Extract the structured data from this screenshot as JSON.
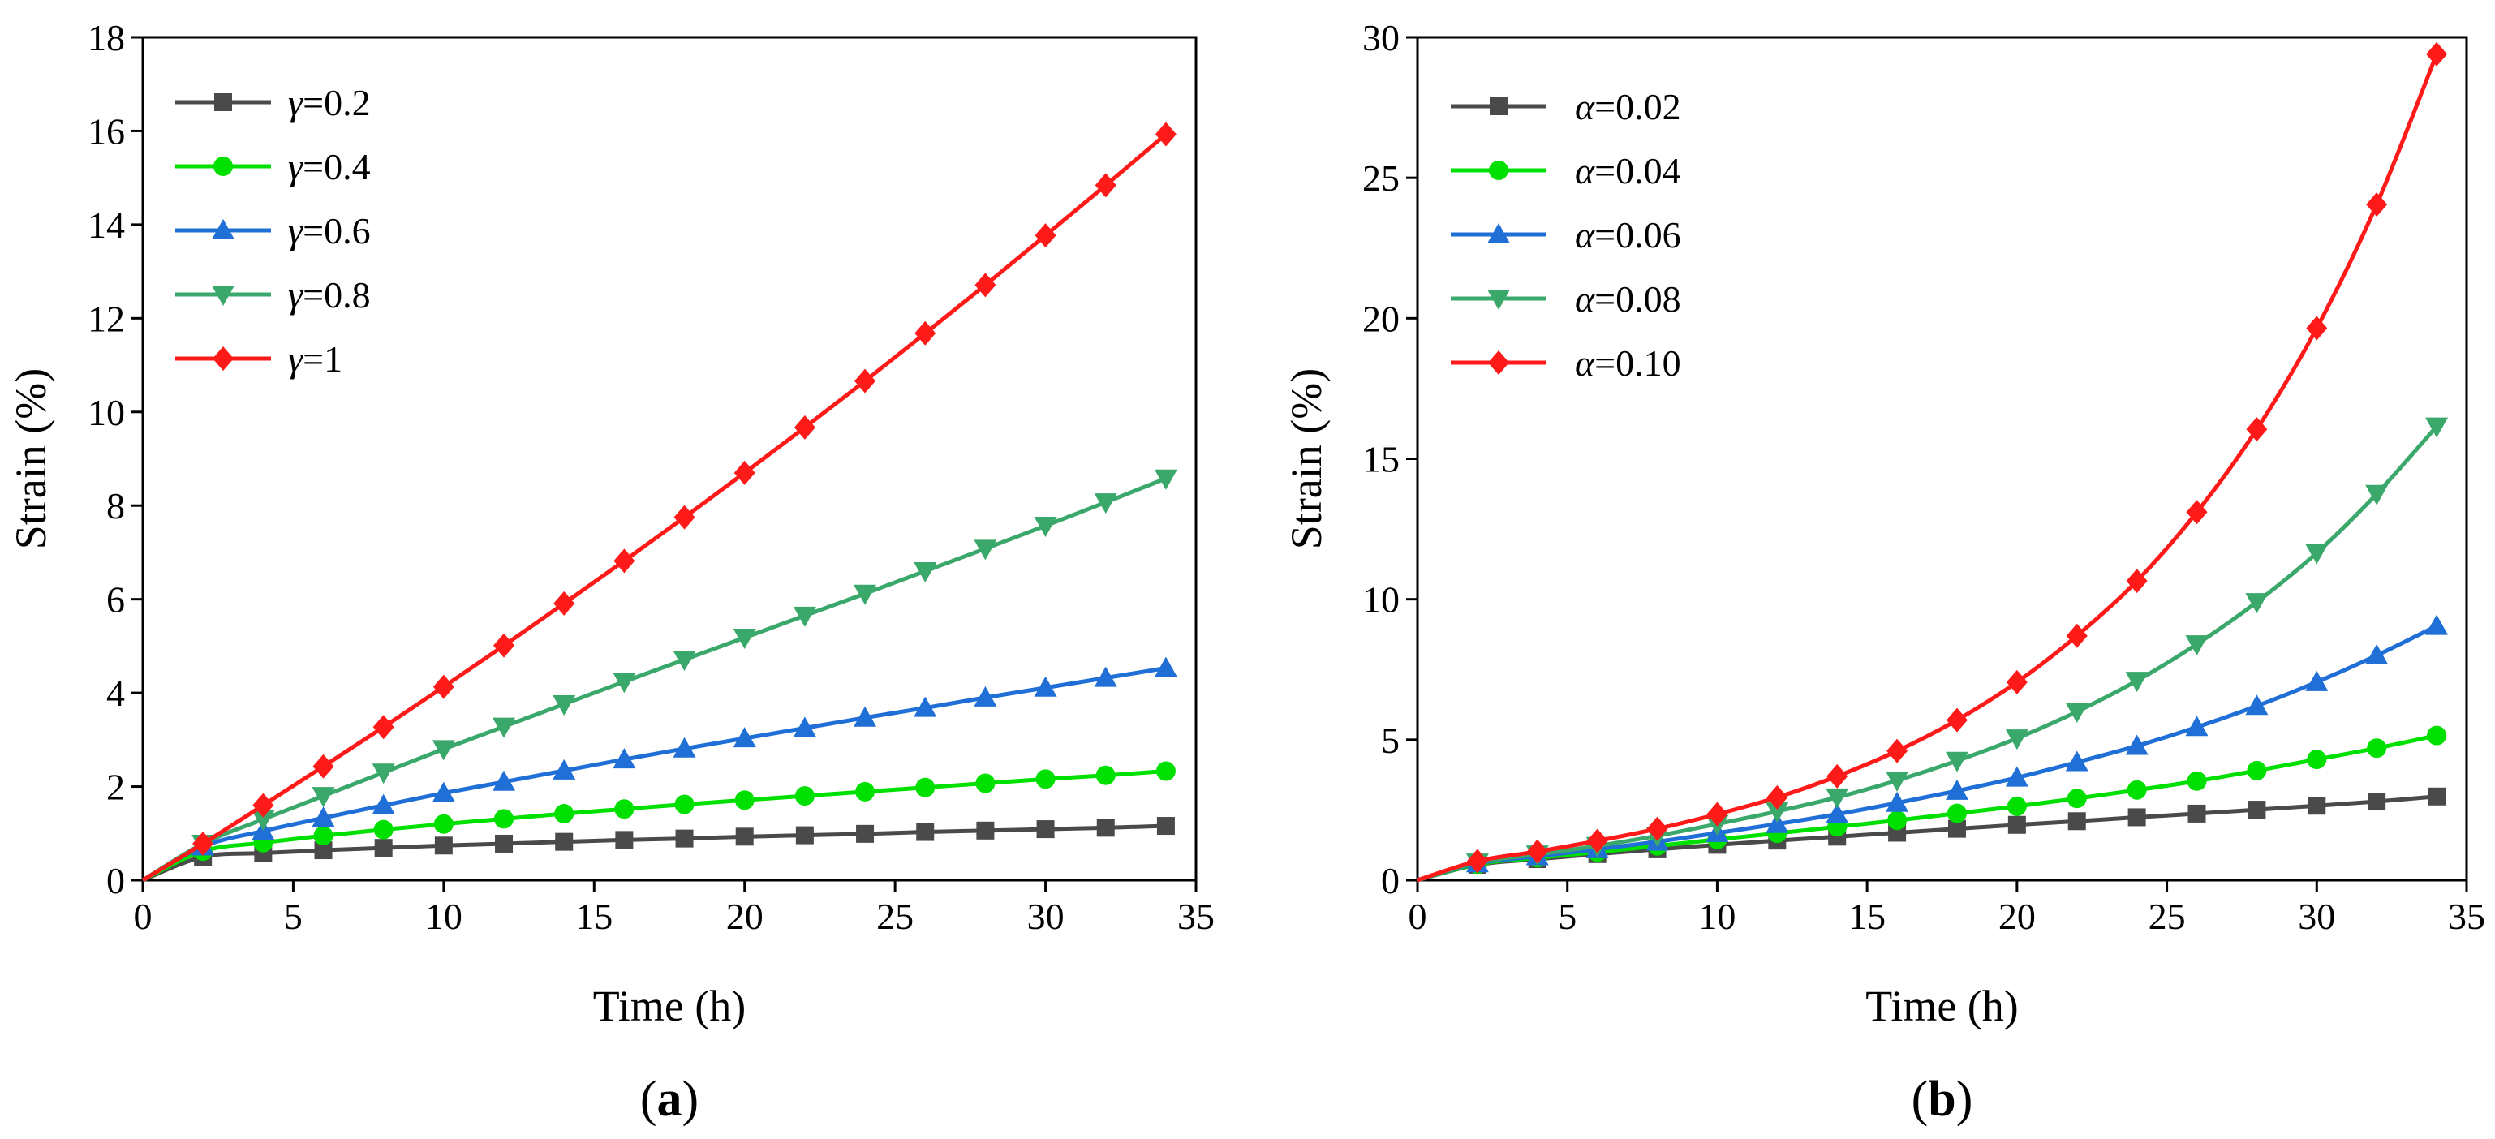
{
  "chart_data": [
    {
      "type": "line",
      "panel_label": "a",
      "xlabel": "Time (h)",
      "ylabel": "Strain (%)",
      "xlim": [
        0,
        35
      ],
      "ylim": [
        0,
        18
      ],
      "xticks": [
        0,
        5,
        10,
        15,
        20,
        25,
        30,
        35
      ],
      "yticks": [
        0,
        2,
        4,
        6,
        8,
        10,
        12,
        14,
        16,
        18
      ],
      "legend_position": "top-left",
      "grid": false,
      "x": [
        0,
        2,
        4,
        6,
        8,
        10,
        12,
        14,
        16,
        18,
        20,
        22,
        24,
        26,
        28,
        30,
        32,
        34
      ],
      "series": [
        {
          "name": "γ=0.2",
          "symbol": "γ",
          "value_text": "=0.2",
          "color": "#4a4a4a",
          "marker": "square",
          "values": [
            0,
            0.5,
            0.58,
            0.64,
            0.69,
            0.74,
            0.78,
            0.82,
            0.86,
            0.89,
            0.93,
            0.96,
            0.99,
            1.03,
            1.06,
            1.09,
            1.12,
            1.16
          ]
        },
        {
          "name": "γ=0.4",
          "symbol": "γ",
          "value_text": "=0.4",
          "color": "#00e000",
          "marker": "circle",
          "values": [
            0,
            0.62,
            0.8,
            0.95,
            1.08,
            1.2,
            1.31,
            1.42,
            1.52,
            1.62,
            1.71,
            1.8,
            1.89,
            1.98,
            2.07,
            2.16,
            2.24,
            2.33
          ]
        },
        {
          "name": "γ=0.6",
          "symbol": "γ",
          "value_text": "=0.6",
          "color": "#1f6fd6",
          "marker": "triangle-up",
          "values": [
            0,
            0.72,
            1.05,
            1.33,
            1.6,
            1.86,
            2.1,
            2.34,
            2.58,
            2.81,
            3.03,
            3.25,
            3.47,
            3.68,
            3.9,
            4.11,
            4.32,
            4.53
          ]
        },
        {
          "name": "γ=0.8",
          "symbol": "γ",
          "value_text": "=0.8",
          "color": "#3aa86b",
          "marker": "triangle-down",
          "values": [
            0,
            0.78,
            1.3,
            1.8,
            2.3,
            2.8,
            3.28,
            3.76,
            4.24,
            4.71,
            5.18,
            5.65,
            6.12,
            6.6,
            7.08,
            7.57,
            8.07,
            8.58
          ]
        },
        {
          "name": "γ=1",
          "symbol": "γ",
          "value_text": "=1",
          "color": "#ff1a1a",
          "marker": "diamond",
          "values": [
            0,
            0.78,
            1.6,
            2.43,
            3.27,
            4.13,
            5.01,
            5.91,
            6.82,
            7.75,
            8.7,
            9.67,
            10.66,
            11.68,
            12.71,
            13.77,
            14.84,
            15.93
          ]
        }
      ]
    },
    {
      "type": "line",
      "panel_label": "b",
      "xlabel": "Time (h)",
      "ylabel": "Strain (%)",
      "xlim": [
        0,
        35
      ],
      "ylim": [
        0,
        30
      ],
      "xticks": [
        0,
        5,
        10,
        15,
        20,
        25,
        30,
        35
      ],
      "yticks": [
        0,
        5,
        10,
        15,
        20,
        25,
        30
      ],
      "legend_position": "top-left",
      "grid": false,
      "x": [
        0,
        2,
        4,
        6,
        8,
        10,
        12,
        14,
        16,
        18,
        20,
        22,
        24,
        26,
        28,
        30,
        32,
        34
      ],
      "series": [
        {
          "name": "α=0.02",
          "symbol": "α",
          "value_text": "=0.02",
          "color": "#4a4a4a",
          "marker": "square",
          "values": [
            0,
            0.55,
            0.75,
            0.93,
            1.1,
            1.26,
            1.41,
            1.55,
            1.69,
            1.83,
            1.97,
            2.1,
            2.24,
            2.37,
            2.51,
            2.65,
            2.8,
            2.98
          ]
        },
        {
          "name": "α=0.04",
          "symbol": "α",
          "value_text": "=0.04",
          "color": "#00e000",
          "marker": "circle",
          "values": [
            0,
            0.57,
            0.8,
            1.0,
            1.22,
            1.45,
            1.67,
            1.9,
            2.13,
            2.38,
            2.63,
            2.91,
            3.21,
            3.53,
            3.9,
            4.3,
            4.7,
            5.15
          ]
        },
        {
          "name": "α=0.06",
          "symbol": "α",
          "value_text": "=0.06",
          "color": "#1f6fd6",
          "marker": "triangle-up",
          "values": [
            0,
            0.6,
            0.85,
            1.1,
            1.37,
            1.68,
            2.0,
            2.35,
            2.75,
            3.18,
            3.65,
            4.2,
            4.78,
            5.45,
            6.2,
            7.05,
            8.0,
            9.05
          ]
        },
        {
          "name": "α=0.08",
          "symbol": "α",
          "value_text": "=0.08",
          "color": "#3aa86b",
          "marker": "triangle-down",
          "values": [
            0,
            0.63,
            0.92,
            1.22,
            1.58,
            2.0,
            2.45,
            2.95,
            3.55,
            4.25,
            5.05,
            6.0,
            7.1,
            8.4,
            9.9,
            11.65,
            13.75,
            16.15
          ]
        },
        {
          "name": "α=0.10",
          "symbol": "α",
          "value_text": "=0.10",
          "color": "#ff1a1a",
          "marker": "diamond",
          "values": [
            0,
            0.68,
            1.02,
            1.4,
            1.83,
            2.35,
            2.95,
            3.7,
            4.6,
            5.7,
            7.05,
            8.7,
            10.65,
            13.1,
            16.05,
            19.65,
            24.05,
            29.4
          ]
        }
      ]
    }
  ]
}
